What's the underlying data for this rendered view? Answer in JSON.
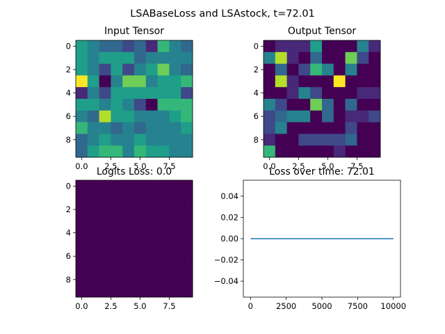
{
  "figure": {
    "suptitle": "LSABaseLoss and LSAstock, t=72.01"
  },
  "colors": {
    "viridis": [
      "#440154",
      "#482878",
      "#3e4989",
      "#31688e",
      "#26828e",
      "#1f9e89",
      "#35b779",
      "#6ece58",
      "#b5de2b",
      "#fde725"
    ],
    "line": "#1f77b4"
  },
  "chart_data": [
    {
      "type": "heatmap",
      "title": "Input Tensor",
      "xticks": [
        "0.0",
        "2.5",
        "5.0",
        "7.5"
      ],
      "yticks": [
        "0",
        "2",
        "4",
        "6",
        "8"
      ],
      "colormap": "viridis",
      "grid": [
        [
          5,
          4,
          3,
          3,
          2,
          3,
          1,
          6,
          4,
          3
        ],
        [
          5,
          4,
          5,
          5,
          5,
          3,
          4,
          4,
          4,
          4
        ],
        [
          5,
          4,
          2,
          5,
          2,
          4,
          5,
          7,
          4,
          3
        ],
        [
          9,
          5,
          0,
          4,
          7,
          7,
          4,
          5,
          5,
          6
        ],
        [
          1,
          4,
          2,
          5,
          5,
          5,
          5,
          5,
          5,
          2
        ],
        [
          5,
          5,
          4,
          5,
          4,
          2,
          0,
          6,
          6,
          6
        ],
        [
          4,
          3,
          8,
          5,
          5,
          4,
          4,
          4,
          5,
          6
        ],
        [
          6,
          4,
          4,
          3,
          4,
          3,
          4,
          4,
          4,
          5
        ],
        [
          3,
          4,
          5,
          4,
          4,
          5,
          4,
          4,
          4,
          4
        ],
        [
          3,
          5,
          6,
          6,
          4,
          6,
          5,
          5,
          4,
          4
        ]
      ]
    },
    {
      "type": "heatmap",
      "title": "Output Tensor",
      "xticks": [
        "0.0",
        "2.5",
        "5.0",
        "7.5"
      ],
      "yticks": [
        "0",
        "2",
        "4",
        "6",
        "8"
      ],
      "colormap": "viridis",
      "grid": [
        [
          0,
          1,
          1,
          1,
          5,
          0,
          0,
          0,
          4,
          1
        ],
        [
          4,
          8,
          1,
          0,
          3,
          0,
          0,
          7,
          2,
          0
        ],
        [
          0,
          3,
          0,
          2,
          6,
          4,
          0,
          4,
          0,
          0
        ],
        [
          0,
          8,
          1,
          0,
          0,
          0,
          9,
          0,
          0,
          0
        ],
        [
          0,
          0,
          1,
          4,
          2,
          0,
          0,
          0,
          1,
          1
        ],
        [
          4,
          2,
          0,
          0,
          7,
          3,
          0,
          3,
          0,
          0
        ],
        [
          2,
          3,
          4,
          4,
          0,
          3,
          0,
          1,
          1,
          2
        ],
        [
          2,
          4,
          0,
          0,
          0,
          0,
          0,
          2,
          0,
          0
        ],
        [
          1,
          0,
          0,
          2,
          2,
          2,
          2,
          3,
          0,
          0
        ],
        [
          6,
          0,
          0,
          0,
          0,
          0,
          1,
          0,
          0,
          0
        ]
      ]
    },
    {
      "type": "heatmap",
      "title": "Logits Loss: 0.0",
      "xticks": [
        "0.0",
        "2.5",
        "5.0",
        "7.5"
      ],
      "yticks": [
        "0",
        "2",
        "4",
        "6",
        "8"
      ],
      "colormap": "viridis",
      "grid": [
        [
          0,
          0,
          0,
          0,
          0,
          0,
          0,
          0,
          0,
          0
        ],
        [
          0,
          0,
          0,
          0,
          0,
          0,
          0,
          0,
          0,
          0
        ],
        [
          0,
          0,
          0,
          0,
          0,
          0,
          0,
          0,
          0,
          0
        ],
        [
          0,
          0,
          0,
          0,
          0,
          0,
          0,
          0,
          0,
          0
        ],
        [
          0,
          0,
          0,
          0,
          0,
          0,
          0,
          0,
          0,
          0
        ],
        [
          0,
          0,
          0,
          0,
          0,
          0,
          0,
          0,
          0,
          0
        ],
        [
          0,
          0,
          0,
          0,
          0,
          0,
          0,
          0,
          0,
          0
        ],
        [
          0,
          0,
          0,
          0,
          0,
          0,
          0,
          0,
          0,
          0
        ],
        [
          0,
          0,
          0,
          0,
          0,
          0,
          0,
          0,
          0,
          0
        ],
        [
          0,
          0,
          0,
          0,
          0,
          0,
          0,
          0,
          0,
          0
        ]
      ]
    },
    {
      "type": "line",
      "title": "Loss over time: 72.01",
      "x": [
        0,
        10000
      ],
      "y": [
        0.0,
        0.0
      ],
      "xlim": [
        -500,
        10500
      ],
      "ylim": [
        -0.055,
        0.055
      ],
      "xticks": [
        "0",
        "2500",
        "5000",
        "7500",
        "10000"
      ],
      "yticks": [
        "0.04",
        "0.02",
        "0.00",
        "−0.02",
        "−0.04"
      ],
      "ytick_values": [
        0.04,
        0.02,
        0.0,
        -0.02,
        -0.04
      ],
      "xtick_values": [
        0,
        2500,
        5000,
        7500,
        10000
      ]
    }
  ]
}
